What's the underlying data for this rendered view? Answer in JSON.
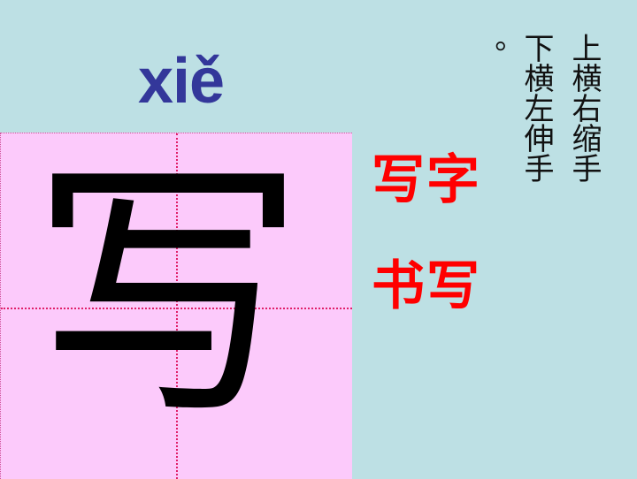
{
  "poem": {
    "lines": [
      "上横右缩手",
      "下横左伸手",
      "。"
    ]
  },
  "pinyin": "xiě",
  "character": "写",
  "words": [
    "写字",
    "书写"
  ],
  "colors": {
    "background": "#bde0e4",
    "grid_fill": "#fccafb",
    "grid_guides": "#e0206a",
    "pinyin": "#33379a",
    "words": "#ff0000"
  }
}
